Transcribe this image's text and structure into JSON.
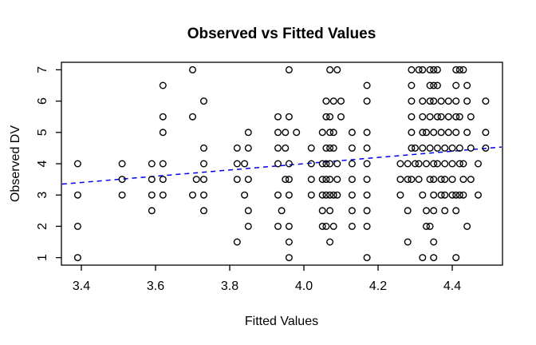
{
  "chart_data": {
    "type": "scatter",
    "title": "Observed vs Fitted Values",
    "xlabel": "Fitted Values",
    "ylabel": "Observed DV",
    "xlim": [
      3.35,
      4.53
    ],
    "ylim": [
      0.76,
      7.24
    ],
    "grid": false,
    "legend": "none",
    "marker": "open-circle",
    "point_color": "#000000",
    "line_color": "#0000EE",
    "x_ticks": [
      {
        "value": 3.4,
        "label": "3.4"
      },
      {
        "value": 3.6,
        "label": "3.6"
      },
      {
        "value": 3.8,
        "label": "3.8"
      },
      {
        "value": 4.0,
        "label": "4.0"
      },
      {
        "value": 4.2,
        "label": "4.2"
      },
      {
        "value": 4.4,
        "label": "4.4"
      }
    ],
    "y_ticks": [
      {
        "value": 1,
        "label": "1"
      },
      {
        "value": 2,
        "label": "2"
      },
      {
        "value": 3,
        "label": "3"
      },
      {
        "value": 4,
        "label": "4"
      },
      {
        "value": 5,
        "label": "5"
      },
      {
        "value": 6,
        "label": "6"
      },
      {
        "value": 7,
        "label": "7"
      }
    ],
    "reference_line": {
      "description": "identity line y = x, blue dashed",
      "style": "dashed",
      "from": [
        3.348,
        3.348
      ],
      "to": [
        4.533,
        4.533
      ]
    },
    "points_by_observed_value": [
      {
        "y": 7.0,
        "x": [
          3.7,
          3.96,
          4.07,
          4.09,
          4.29,
          4.31,
          4.32,
          4.34,
          4.35,
          4.36,
          4.41,
          4.42,
          4.43
        ]
      },
      {
        "y": 6.5,
        "x": [
          3.62,
          4.17,
          4.29,
          4.34,
          4.35,
          4.36,
          4.41,
          4.44
        ]
      },
      {
        "y": 6.0,
        "x": [
          3.73,
          4.06,
          4.08,
          4.1,
          4.17,
          4.29,
          4.32,
          4.34,
          4.35,
          4.37,
          4.39,
          4.41,
          4.44,
          4.49
        ]
      },
      {
        "y": 5.5,
        "x": [
          3.62,
          3.7,
          3.93,
          3.96,
          4.06,
          4.07,
          4.1,
          4.29,
          4.32,
          4.34,
          4.36,
          4.37,
          4.39,
          4.41,
          4.42,
          4.45
        ]
      },
      {
        "y": 5.0,
        "x": [
          3.62,
          3.85,
          3.93,
          3.95,
          3.98,
          4.05,
          4.07,
          4.08,
          4.13,
          4.17,
          4.29,
          4.32,
          4.33,
          4.35,
          4.37,
          4.39,
          4.41,
          4.44,
          4.49
        ]
      },
      {
        "y": 4.5,
        "x": [
          3.73,
          3.82,
          3.85,
          3.93,
          3.95,
          4.02,
          4.06,
          4.07,
          4.08,
          4.13,
          4.17,
          4.29,
          4.3,
          4.32,
          4.34,
          4.36,
          4.38,
          4.4,
          4.42,
          4.45,
          4.49
        ]
      },
      {
        "y": 4.0,
        "x": [
          3.39,
          3.51,
          3.59,
          3.62,
          3.73,
          3.82,
          3.84,
          3.93,
          3.96,
          4.02,
          4.05,
          4.06,
          4.07,
          4.09,
          4.13,
          4.17,
          4.26,
          4.28,
          4.3,
          4.31,
          4.33,
          4.35,
          4.36,
          4.38,
          4.4,
          4.42,
          4.43,
          4.47
        ]
      },
      {
        "y": 3.5,
        "x": [
          3.51,
          3.59,
          3.62,
          3.71,
          3.73,
          3.82,
          3.85,
          3.95,
          3.96,
          4.02,
          4.05,
          4.06,
          4.07,
          4.09,
          4.13,
          4.17,
          4.26,
          4.28,
          4.29,
          4.31,
          4.34,
          4.35,
          4.37,
          4.38,
          4.4,
          4.43,
          4.45
        ]
      },
      {
        "y": 3.0,
        "x": [
          3.39,
          3.51,
          3.59,
          3.62,
          3.7,
          3.73,
          3.84,
          3.93,
          3.96,
          4.02,
          4.05,
          4.06,
          4.07,
          4.08,
          4.09,
          4.13,
          4.17,
          4.26,
          4.32,
          4.35,
          4.37,
          4.38,
          4.4,
          4.41,
          4.42,
          4.43,
          4.47
        ]
      },
      {
        "y": 2.5,
        "x": [
          3.59,
          3.73,
          3.85,
          3.94,
          4.05,
          4.07,
          4.13,
          4.17,
          4.28,
          4.33,
          4.35,
          4.38,
          4.41
        ]
      },
      {
        "y": 2.0,
        "x": [
          3.39,
          3.85,
          3.93,
          3.96,
          4.05,
          4.06,
          4.08,
          4.13,
          4.17,
          4.33,
          4.34,
          4.44
        ]
      },
      {
        "y": 1.5,
        "x": [
          3.82,
          3.96,
          4.07,
          4.28,
          4.35
        ]
      },
      {
        "y": 1.0,
        "x": [
          3.39,
          3.96,
          4.17,
          4.32,
          4.35,
          4.41
        ]
      }
    ]
  }
}
